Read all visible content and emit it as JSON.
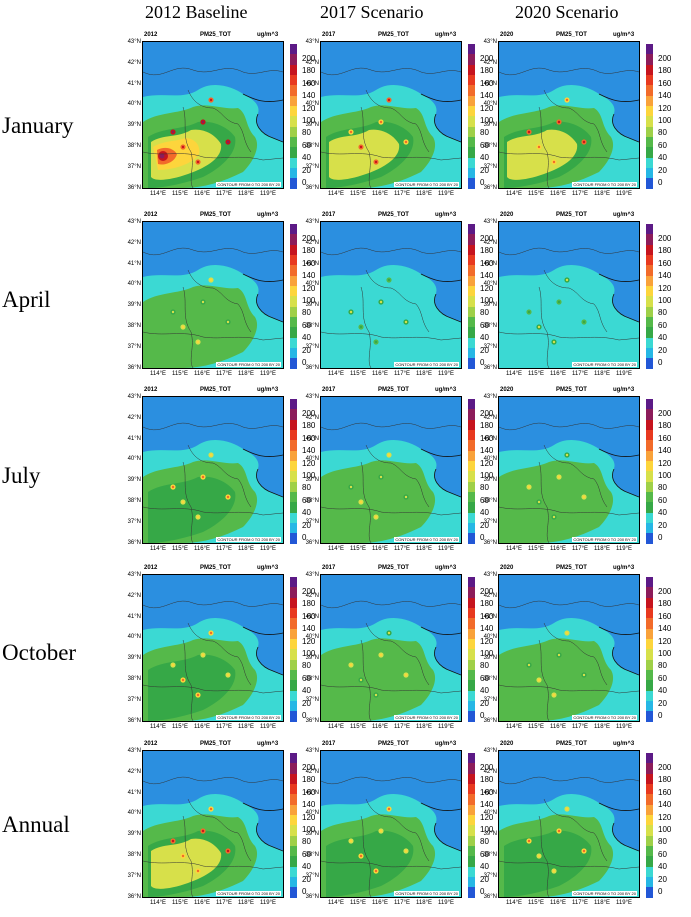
{
  "columns": [
    "2012 Baseline",
    "2017 Scenario",
    "2020 Scenario"
  ],
  "rows": [
    "January",
    "April",
    "July",
    "October",
    "Annual"
  ],
  "panel_year_labels": [
    "2012",
    "2017",
    "2020"
  ],
  "variable_label": "PM25_TOT",
  "unit_label": "ug/m^3",
  "contour_note": "CONTOUR FROM 0 TO 200 BY 20",
  "lat_labels": [
    "43°N",
    "42°N",
    "41°N",
    "40°N",
    "39°N",
    "38°N",
    "37°N",
    "36°N"
  ],
  "lon_labels": [
    "114°E",
    "115°E",
    "116°E",
    "117°E",
    "118°E",
    "119°E"
  ],
  "colorbar_labels": [
    "200",
    "180",
    "160",
    "140",
    "120",
    "100",
    "80",
    "60",
    "40",
    "20",
    "0"
  ],
  "colorbar_colors": [
    "#5c1a86",
    "#8c1c5a",
    "#c6141e",
    "#e8391f",
    "#f26b2a",
    "#f9a23a",
    "#fdd53c",
    "#d7e04a",
    "#9fd048",
    "#55b94a",
    "#36a847",
    "#3bd9d3",
    "#26b7e5",
    "#2257d6"
  ],
  "colors": {
    "sea": "#2b8fe0",
    "low": "#3bd9d3",
    "mid": "#36a847",
    "mid2": "#55b94a",
    "high": "#d7e04a",
    "higher": "#fdd53c",
    "orange": "#f26b2a",
    "red": "#c6141e",
    "dark": "#8c1c5a"
  },
  "panel_levels": [
    [
      4,
      3,
      3
    ],
    [
      1,
      0,
      0
    ],
    [
      2,
      1,
      1
    ],
    [
      2,
      1,
      1
    ],
    [
      3,
      2,
      2
    ]
  ]
}
